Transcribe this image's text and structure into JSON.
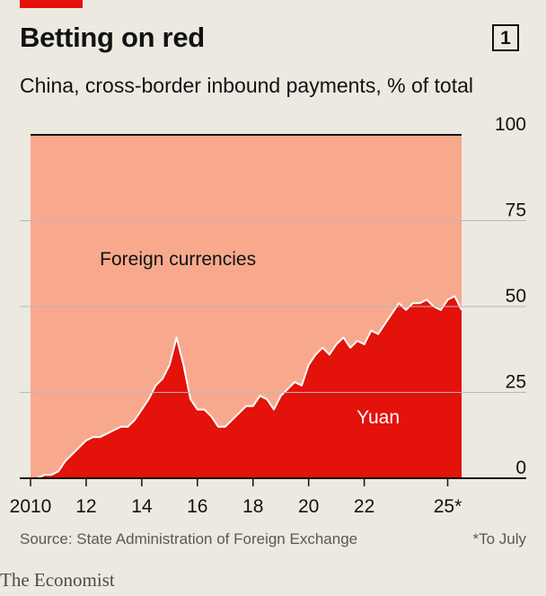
{
  "header": {
    "title": "Betting on red",
    "chart_number": "1",
    "subtitle": "China, cross-border inbound payments, % of total"
  },
  "footer": {
    "source": "Source: State Administration of Foreign Exchange",
    "footnote": "*To July",
    "brand": "The Economist"
  },
  "colors": {
    "yuan": "#e3120b",
    "foreign": "#f8a98d",
    "accent": "#e3120b",
    "background": "#ece9e1"
  },
  "chart_data": {
    "type": "area",
    "title": "Betting on red",
    "subtitle": "China, cross-border inbound payments, % of total",
    "ylim": [
      0,
      100
    ],
    "y_ticks": [
      0,
      25,
      50,
      75,
      100
    ],
    "y_tick_labels": [
      "0",
      "25",
      "50",
      "75",
      "100"
    ],
    "xlim": [
      "2010-01",
      "2025-07"
    ],
    "x_ticks": [
      "2010",
      "2012",
      "2014",
      "2016",
      "2018",
      "2020",
      "2022",
      "2025"
    ],
    "x_tick_labels": [
      "2010",
      "12",
      "14",
      "16",
      "18",
      "20",
      "22",
      "25*"
    ],
    "grid": true,
    "annotations": [
      "Foreign currencies",
      "Yuan"
    ],
    "series": [
      {
        "name": "Yuan",
        "x": [
          "2010-01",
          "2010-04",
          "2010-07",
          "2010-10",
          "2011-01",
          "2011-04",
          "2011-07",
          "2011-10",
          "2012-01",
          "2012-04",
          "2012-07",
          "2012-10",
          "2013-01",
          "2013-04",
          "2013-07",
          "2013-10",
          "2014-01",
          "2014-04",
          "2014-07",
          "2014-10",
          "2015-01",
          "2015-04",
          "2015-07",
          "2015-10",
          "2016-01",
          "2016-04",
          "2016-07",
          "2016-10",
          "2017-01",
          "2017-04",
          "2017-07",
          "2017-10",
          "2018-01",
          "2018-04",
          "2018-07",
          "2018-10",
          "2019-01",
          "2019-04",
          "2019-07",
          "2019-10",
          "2020-01",
          "2020-04",
          "2020-07",
          "2020-10",
          "2021-01",
          "2021-04",
          "2021-07",
          "2021-10",
          "2022-01",
          "2022-04",
          "2022-07",
          "2022-10",
          "2023-01",
          "2023-04",
          "2023-07",
          "2023-10",
          "2024-01",
          "2024-04",
          "2024-07",
          "2024-10",
          "2025-01",
          "2025-04",
          "2025-07"
        ],
        "values": [
          0,
          0,
          1,
          1,
          2,
          5,
          7,
          9,
          11,
          12,
          12,
          13,
          14,
          15,
          15,
          17,
          20,
          23,
          27,
          29,
          33,
          41,
          33,
          23,
          20,
          20,
          18,
          15,
          15,
          17,
          19,
          21,
          21,
          24,
          23,
          20,
          24,
          26,
          28,
          27,
          33,
          36,
          38,
          36,
          39,
          41,
          38,
          40,
          39,
          43,
          42,
          45,
          48,
          51,
          49,
          51,
          51,
          52,
          50,
          49,
          52,
          53,
          49
        ]
      },
      {
        "name": "Foreign currencies",
        "note": "remainder to 100%"
      }
    ]
  }
}
